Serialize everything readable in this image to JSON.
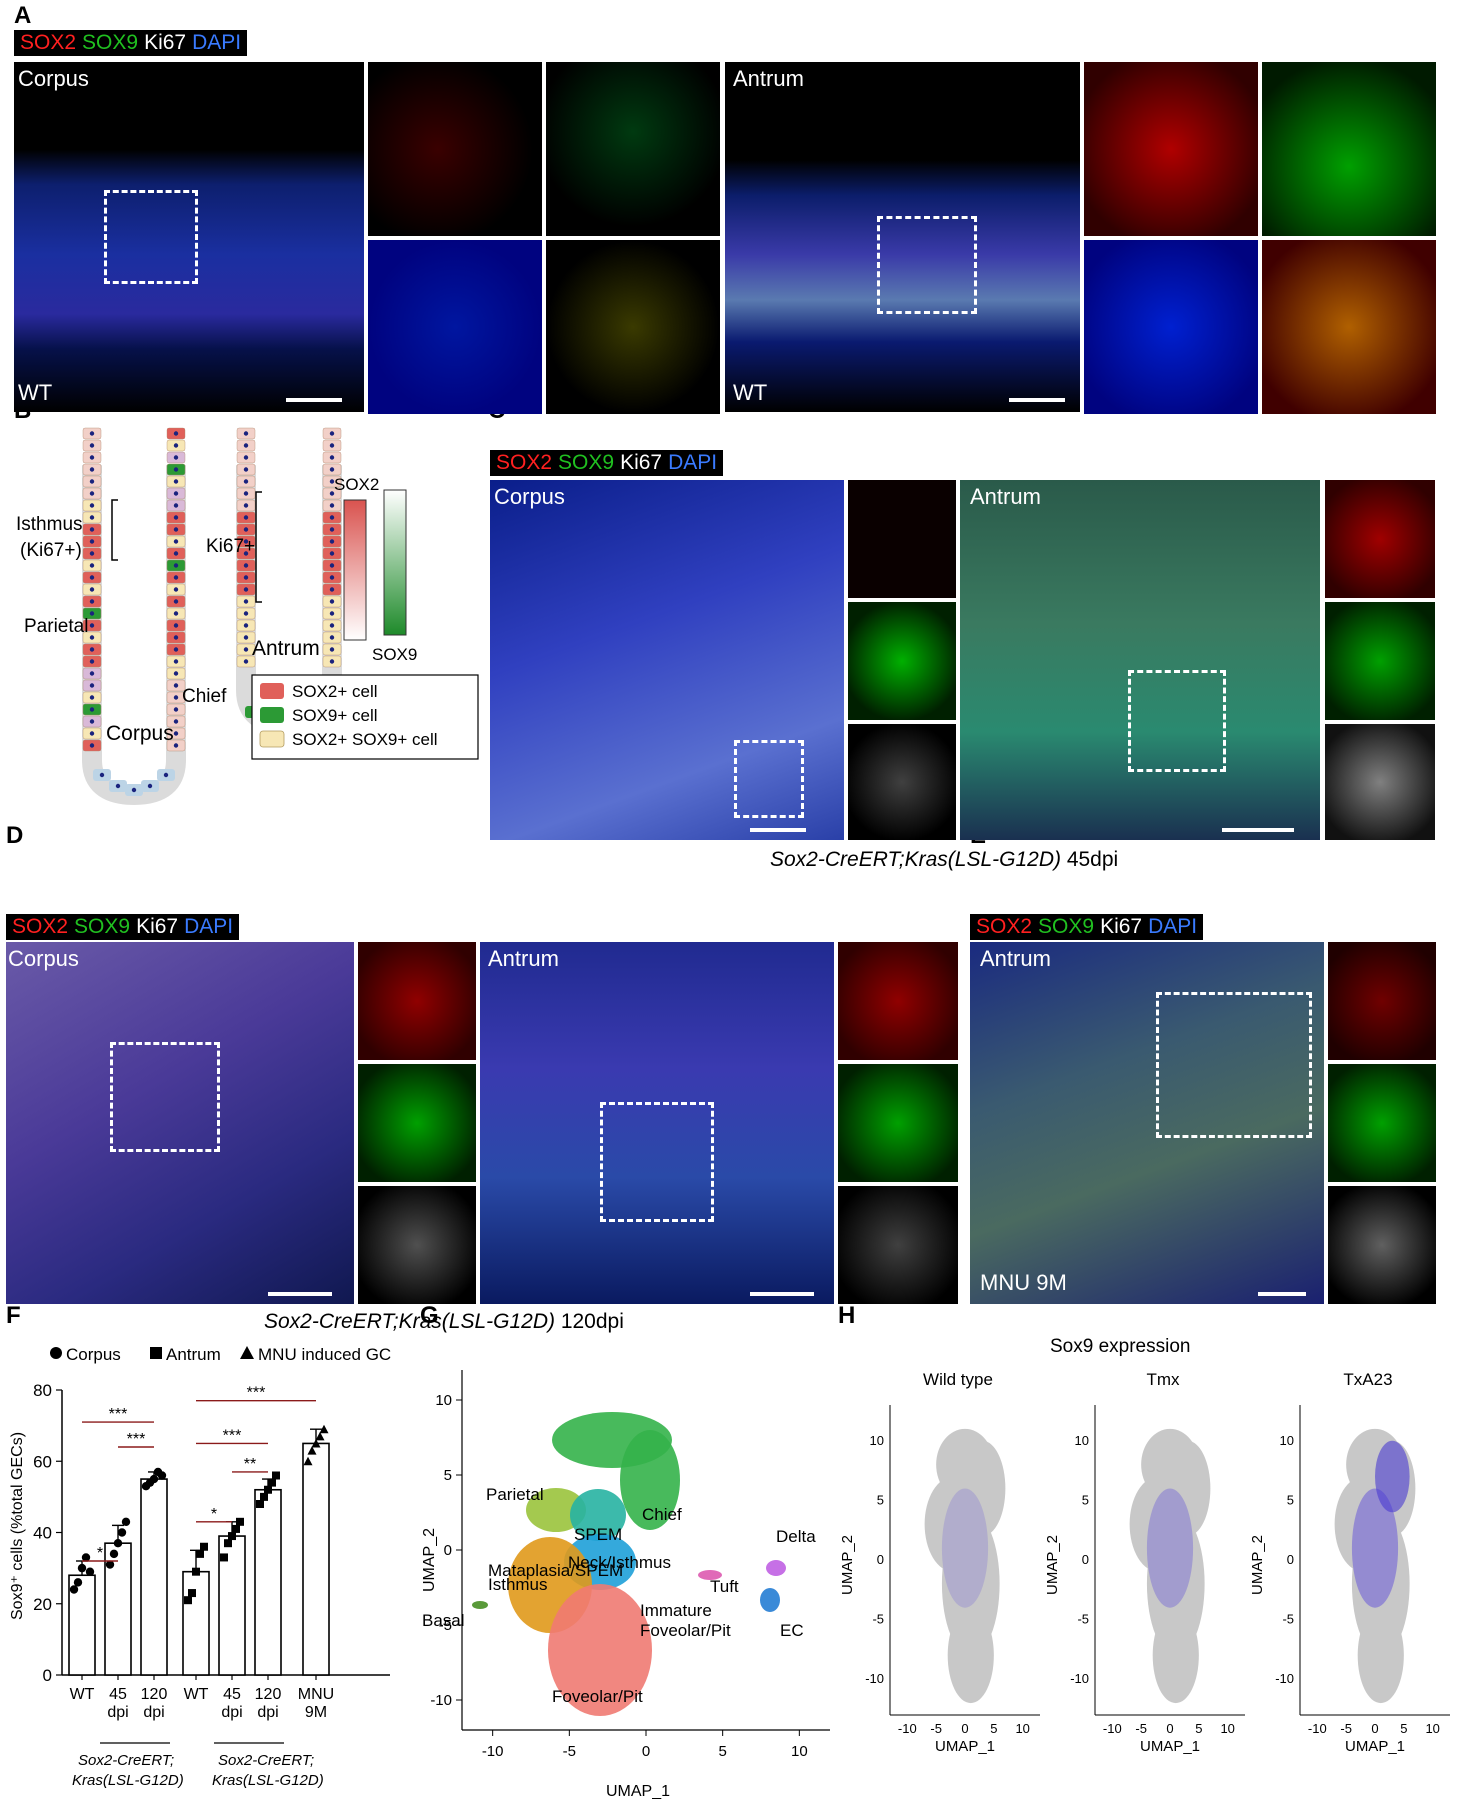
{
  "panels": {
    "A": "A",
    "B": "B",
    "C": "C",
    "D": "D",
    "E": "E",
    "F": "F",
    "G": "G",
    "H": "H"
  },
  "stain_legend": {
    "sox2": "SOX2",
    "sox9": "SOX9",
    "ki67": "Ki67",
    "dapi": "DAPI"
  },
  "panel_a": {
    "corpus": "Corpus",
    "antrum": "Antrum",
    "wt1": "WT",
    "wt2": "WT"
  },
  "panel_b": {
    "isthmus": "Isthmus",
    "isthmus_ki67": "(Ki67+)",
    "ki67": "Ki67+",
    "parietal": "Parietal",
    "chief": "Chief",
    "corpus": "Corpus",
    "antrum": "Antrum",
    "sox2": "SOX2",
    "sox9": "SOX9",
    "legend": [
      "SOX2+ cell",
      "SOX9+ cell",
      "SOX2+ SOX9+ cell"
    ]
  },
  "panel_c": {
    "corpus": "Corpus",
    "antrum": "Antrum",
    "caption_italic": "Sox2-CreERT;Kras(LSL-G12D)",
    "caption_rest": " 45dpi"
  },
  "panel_d": {
    "corpus": "Corpus",
    "antrum": "Antrum",
    "caption_italic": "Sox2-CreERT;Kras(LSL-G12D)",
    "caption_rest": " 120dpi"
  },
  "panel_e": {
    "antrum": "Antrum",
    "label": "MNU 9M"
  },
  "panel_f": {
    "legend": [
      "Corpus",
      "Antrum",
      "MNU induced GC"
    ],
    "ylabel": "Sox9⁺ cells (%total GECs)",
    "yticks": [
      "0",
      "20",
      "40",
      "60",
      "80"
    ],
    "xticks": [
      [
        "WT"
      ],
      [
        "45",
        "dpi"
      ],
      [
        "120",
        "dpi"
      ],
      [
        "WT"
      ],
      [
        "45",
        "dpi"
      ],
      [
        "120",
        "dpi"
      ],
      [
        "MNU",
        "9M"
      ]
    ],
    "group_label_1": "Sox2-CreERT;",
    "group_label_2": "Kras(LSL-G12D)",
    "sig": [
      "*",
      "***",
      "***",
      "*",
      "**",
      "***",
      "***"
    ]
  },
  "panel_g": {
    "xlabel": "UMAP_1",
    "ylabel": "UMAP_2",
    "xticks": [
      "-10",
      "-5",
      "0",
      "5",
      "10"
    ],
    "yticks": [
      "10",
      "5",
      "0",
      "-5",
      "-10"
    ],
    "clusters": [
      "Mataplasia/SPEM",
      "Parietal",
      "Chief",
      "SPEM",
      "Neck/Isthmus",
      "Delta",
      "Isthmus",
      "Tuft",
      "Basal",
      "Immature",
      "Foveolar/Pit",
      "EC",
      "Foveolar/Pit"
    ]
  },
  "panel_h": {
    "title": "Sox9 expression",
    "subplots": [
      "Wild type",
      "Tmx",
      "TxA23"
    ],
    "xlabel": "UMAP_1",
    "ylabel": "UMAP_2",
    "xticks": [
      "-10",
      "-5",
      "0",
      "5",
      "10"
    ],
    "yticks": [
      "10",
      "5",
      "0",
      "-5",
      "-10"
    ]
  },
  "chart_data": [
    {
      "type": "bar",
      "panel": "F",
      "categories": [
        "WT",
        "45 dpi",
        "120 dpi",
        "WT",
        "45 dpi",
        "120 dpi",
        "MNU 9M"
      ],
      "groups": [
        "Corpus",
        "Corpus",
        "Corpus",
        "Antrum",
        "Antrum",
        "Antrum",
        "MNU induced GC"
      ],
      "values": [
        28,
        37,
        55,
        29,
        39,
        52,
        65
      ],
      "error": [
        4,
        5,
        2,
        6,
        4,
        3,
        4
      ],
      "points": [
        [
          24,
          26,
          30,
          33,
          29
        ],
        [
          31,
          34,
          37,
          40,
          43
        ],
        [
          53,
          54,
          55,
          57,
          56
        ],
        [
          21,
          23,
          29,
          34,
          36
        ],
        [
          33,
          37,
          39,
          41,
          43
        ],
        [
          48,
          50,
          52,
          54,
          56
        ],
        [
          60,
          63,
          65,
          67,
          69
        ]
      ],
      "ylim": [
        0,
        80
      ],
      "ylabel": "Sox9⁺ cells (%total GECs)"
    },
    {
      "type": "scatter",
      "panel": "G",
      "xlabel": "UMAP_1",
      "ylabel": "UMAP_2",
      "xlim": [
        -12,
        12
      ],
      "ylim": [
        -12,
        12
      ]
    }
  ]
}
